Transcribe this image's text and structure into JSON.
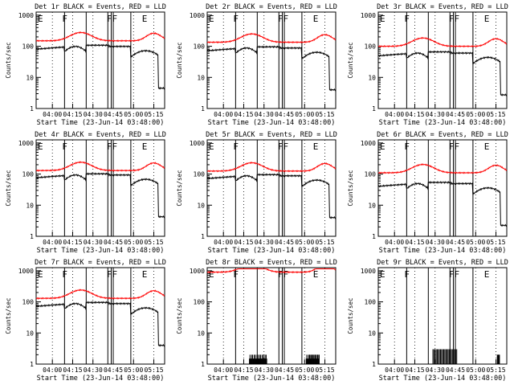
{
  "ylabel": "Counts/sec",
  "xlabel": "Start Time (23-Jun-14 03:48:00)",
  "x_ticks": [
    "04:00",
    "04:15",
    "04:30",
    "04:45",
    "05:00",
    "05:15"
  ],
  "y_ticks": [
    "1",
    "10",
    "100",
    "1000"
  ],
  "event_markers": [
    {
      "label": "E",
      "t": 3
    },
    {
      "label": "F",
      "t": 21
    },
    {
      "label": "FF",
      "t": 54
    },
    {
      "label": "E",
      "t": 80
    }
  ],
  "colors": {
    "events": "#000000",
    "lld": "#ff0000",
    "axes": "#000000"
  },
  "chart_data": [
    {
      "type": "line",
      "title": "Det 1r BLACK = Events, RED = LLD",
      "series": [
        {
          "name": "BLACK = Events",
          "color": "#000000",
          "profile": "normal",
          "base": 90
        },
        {
          "name": "RED = LLD",
          "color": "#ff0000",
          "profile": "lld",
          "base": 150
        }
      ]
    },
    {
      "type": "line",
      "title": "Det 2r BLACK = Events, RED = LLD",
      "series": [
        {
          "name": "BLACK = Events",
          "color": "#000000",
          "profile": "normal",
          "base": 80
        },
        {
          "name": "RED = LLD",
          "color": "#ff0000",
          "profile": "lld",
          "base": 135
        }
      ]
    },
    {
      "type": "line",
      "title": "Det 3r BLACK = Events, RED = LLD",
      "series": [
        {
          "name": "BLACK = Events",
          "color": "#000000",
          "profile": "normal",
          "base": 55
        },
        {
          "name": "RED = LLD",
          "color": "#ff0000",
          "profile": "lld",
          "base": 100
        }
      ]
    },
    {
      "type": "line",
      "title": "Det 4r BLACK = Events, RED = LLD",
      "series": [
        {
          "name": "BLACK = Events",
          "color": "#000000",
          "profile": "normal",
          "base": 85
        },
        {
          "name": "RED = LLD",
          "color": "#ff0000",
          "profile": "lld",
          "base": 130
        }
      ]
    },
    {
      "type": "line",
      "title": "Det 5r BLACK = Events, RED = LLD",
      "series": [
        {
          "name": "BLACK = Events",
          "color": "#000000",
          "profile": "normal",
          "base": 80
        },
        {
          "name": "RED = LLD",
          "color": "#ff0000",
          "profile": "lld",
          "base": 125
        }
      ]
    },
    {
      "type": "line",
      "title": "Det 6r BLACK = Events, RED = LLD",
      "series": [
        {
          "name": "BLACK = Events",
          "color": "#000000",
          "profile": "normal",
          "base": 45
        },
        {
          "name": "RED = LLD",
          "color": "#ff0000",
          "profile": "lld",
          "base": 110
        }
      ]
    },
    {
      "type": "line",
      "title": "Det 7r BLACK = Events, RED = LLD",
      "series": [
        {
          "name": "BLACK = Events",
          "color": "#000000",
          "profile": "normal",
          "base": 80
        },
        {
          "name": "RED = LLD",
          "color": "#ff0000",
          "profile": "lld",
          "base": 130
        }
      ]
    },
    {
      "type": "line",
      "title": "Det 8r BLACK = Events, RED = LLD",
      "series": [
        {
          "name": "BLACK = Events",
          "color": "#000000",
          "profile": "sparse8",
          "base": 1.5
        },
        {
          "name": "RED = LLD",
          "color": "#ff0000",
          "profile": "lld",
          "base": 900
        }
      ]
    },
    {
      "type": "line",
      "title": "Det 9r BLACK = Events, RED = LLD",
      "series": [
        {
          "name": "BLACK = Events",
          "color": "#000000",
          "profile": "sparse9",
          "base": 1.5
        }
      ]
    }
  ]
}
